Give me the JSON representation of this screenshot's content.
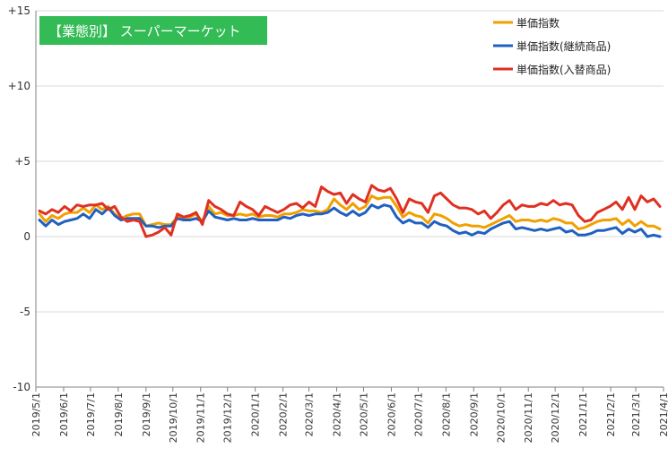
{
  "chart_data": {
    "type": "line",
    "title": "【業態別】 スーパーマーケット",
    "xlabel": "",
    "ylabel": "",
    "ylim": [
      -10,
      15
    ],
    "yticks": [
      -10,
      -5,
      0,
      5,
      10,
      15
    ],
    "ytick_labels": [
      "-10",
      "-5",
      "0",
      "+5",
      "+10",
      "+15"
    ],
    "xlim": [
      "2019/5/1",
      "2021/4/1"
    ],
    "xticks": [
      "2019/5/1",
      "2019/6/1",
      "2019/7/1",
      "2019/8/1",
      "2019/9/1",
      "2019/10/1",
      "2019/11/1",
      "2019/12/1",
      "2020/1/1",
      "2020/2/1",
      "2020/3/1",
      "2020/4/1",
      "2020/5/1",
      "2020/6/1",
      "2020/7/1",
      "2020/8/1",
      "2020/9/1",
      "2020/10/1",
      "2020/11/1",
      "2020/12/1",
      "2021/1/1",
      "2021/2/1",
      "2021/3/1",
      "2021/4/1"
    ],
    "grid": "horizontal",
    "legend_position": "top-right",
    "x": [
      "2019/5/5",
      "2019/5/12",
      "2019/5/19",
      "2019/5/26",
      "2019/6/2",
      "2019/6/9",
      "2019/6/16",
      "2019/6/23",
      "2019/6/30",
      "2019/7/7",
      "2019/7/14",
      "2019/7/21",
      "2019/7/28",
      "2019/8/4",
      "2019/8/11",
      "2019/8/18",
      "2019/8/25",
      "2019/9/1",
      "2019/9/8",
      "2019/9/15",
      "2019/9/22",
      "2019/9/29",
      "2019/10/6",
      "2019/10/13",
      "2019/10/20",
      "2019/10/27",
      "2019/11/3",
      "2019/11/10",
      "2019/11/17",
      "2019/11/24",
      "2019/12/1",
      "2019/12/8",
      "2019/12/15",
      "2019/12/22",
      "2019/12/29",
      "2020/1/5",
      "2020/1/12",
      "2020/1/19",
      "2020/1/26",
      "2020/2/2",
      "2020/2/9",
      "2020/2/16",
      "2020/2/23",
      "2020/3/1",
      "2020/3/8",
      "2020/3/15",
      "2020/3/22",
      "2020/3/29",
      "2020/4/5",
      "2020/4/12",
      "2020/4/19",
      "2020/4/26",
      "2020/5/3",
      "2020/5/10",
      "2020/5/17",
      "2020/5/24",
      "2020/5/31",
      "2020/6/7",
      "2020/6/14",
      "2020/6/21",
      "2020/6/28",
      "2020/7/5",
      "2020/7/12",
      "2020/7/19",
      "2020/7/26",
      "2020/8/2",
      "2020/8/9",
      "2020/8/16",
      "2020/8/23",
      "2020/8/30",
      "2020/9/6",
      "2020/9/13",
      "2020/9/20",
      "2020/9/27",
      "2020/10/4",
      "2020/10/11",
      "2020/10/18",
      "2020/10/25",
      "2020/11/1",
      "2020/11/8",
      "2020/11/15",
      "2020/11/22",
      "2020/11/29",
      "2020/12/6",
      "2020/12/13",
      "2020/12/20",
      "2020/12/27",
      "2021/1/3",
      "2021/1/10",
      "2021/1/17",
      "2021/1/24",
      "2021/1/31",
      "2021/2/7",
      "2021/2/14",
      "2021/2/21",
      "2021/2/28",
      "2021/3/7",
      "2021/3/14",
      "2021/3/21",
      "2021/3/28"
    ],
    "series": [
      {
        "name": "単価指数",
        "color": "#f0a000",
        "values": [
          1.5,
          1.0,
          1.4,
          1.2,
          1.5,
          1.6,
          1.6,
          1.9,
          1.6,
          2.1,
          1.8,
          2.0,
          1.5,
          1.2,
          1.4,
          1.5,
          1.5,
          0.7,
          0.8,
          0.9,
          0.8,
          0.8,
          1.3,
          1.2,
          1.3,
          1.5,
          1.0,
          2.0,
          1.5,
          1.6,
          1.4,
          1.4,
          1.5,
          1.4,
          1.5,
          1.3,
          1.4,
          1.4,
          1.3,
          1.5,
          1.5,
          1.6,
          1.8,
          1.7,
          1.7,
          1.6,
          1.8,
          2.5,
          2.1,
          1.8,
          2.2,
          1.8,
          2.0,
          2.7,
          2.5,
          2.6,
          2.6,
          2.0,
          1.3,
          1.6,
          1.4,
          1.3,
          0.9,
          1.5,
          1.4,
          1.2,
          0.9,
          0.7,
          0.8,
          0.7,
          0.7,
          0.6,
          0.8,
          1.0,
          1.2,
          1.4,
          1.0,
          1.1,
          1.1,
          1.0,
          1.1,
          1.0,
          1.2,
          1.1,
          0.9,
          0.9,
          0.5,
          0.6,
          0.8,
          1.0,
          1.1,
          1.1,
          1.2,
          0.8,
          1.1,
          0.7,
          1.0,
          0.7,
          0.7,
          0.5
        ]
      },
      {
        "name": "単価指数(継続商品)",
        "color": "#2060c0",
        "values": [
          1.1,
          0.7,
          1.1,
          0.8,
          1.0,
          1.1,
          1.2,
          1.5,
          1.2,
          1.8,
          1.5,
          1.9,
          1.4,
          1.1,
          1.2,
          1.2,
          1.2,
          0.7,
          0.7,
          0.6,
          0.7,
          0.7,
          1.2,
          1.1,
          1.1,
          1.2,
          1.0,
          1.7,
          1.3,
          1.2,
          1.1,
          1.2,
          1.1,
          1.1,
          1.2,
          1.1,
          1.1,
          1.1,
          1.1,
          1.3,
          1.2,
          1.4,
          1.5,
          1.4,
          1.5,
          1.5,
          1.6,
          1.9,
          1.6,
          1.4,
          1.7,
          1.4,
          1.6,
          2.1,
          1.9,
          2.1,
          2.0,
          1.3,
          0.9,
          1.1,
          0.9,
          0.9,
          0.6,
          1.0,
          0.8,
          0.7,
          0.4,
          0.2,
          0.3,
          0.1,
          0.3,
          0.2,
          0.5,
          0.7,
          0.9,
          1.0,
          0.5,
          0.6,
          0.5,
          0.4,
          0.5,
          0.4,
          0.5,
          0.6,
          0.3,
          0.4,
          0.1,
          0.1,
          0.2,
          0.4,
          0.4,
          0.5,
          0.6,
          0.2,
          0.5,
          0.3,
          0.5,
          0.0,
          0.1,
          0.0
        ]
      },
      {
        "name": "単価指数(入替商品)",
        "color": "#e03020",
        "values": [
          1.7,
          1.5,
          1.8,
          1.6,
          2.0,
          1.7,
          2.1,
          2.0,
          2.1,
          2.1,
          2.2,
          1.8,
          2.0,
          1.3,
          1.0,
          1.1,
          1.0,
          0.0,
          0.1,
          0.3,
          0.6,
          0.1,
          1.5,
          1.3,
          1.4,
          1.6,
          0.8,
          2.4,
          2.0,
          1.8,
          1.5,
          1.4,
          2.3,
          2.0,
          1.8,
          1.4,
          2.0,
          1.8,
          1.6,
          1.8,
          2.1,
          2.2,
          1.9,
          2.3,
          2.0,
          3.3,
          3.0,
          2.8,
          2.9,
          2.2,
          2.8,
          2.5,
          2.3,
          3.4,
          3.1,
          3.0,
          3.2,
          2.5,
          1.6,
          2.5,
          2.3,
          2.2,
          1.6,
          2.7,
          2.9,
          2.5,
          2.1,
          1.9,
          1.9,
          1.8,
          1.5,
          1.7,
          1.2,
          1.6,
          2.1,
          2.4,
          1.8,
          2.1,
          2.0,
          2.0,
          2.2,
          2.1,
          2.4,
          2.1,
          2.2,
          2.1,
          1.4,
          1.0,
          1.1,
          1.6,
          1.8,
          2.0,
          2.3,
          1.8,
          2.6,
          1.8,
          2.7,
          2.3,
          2.5,
          2.0
        ]
      }
    ]
  }
}
